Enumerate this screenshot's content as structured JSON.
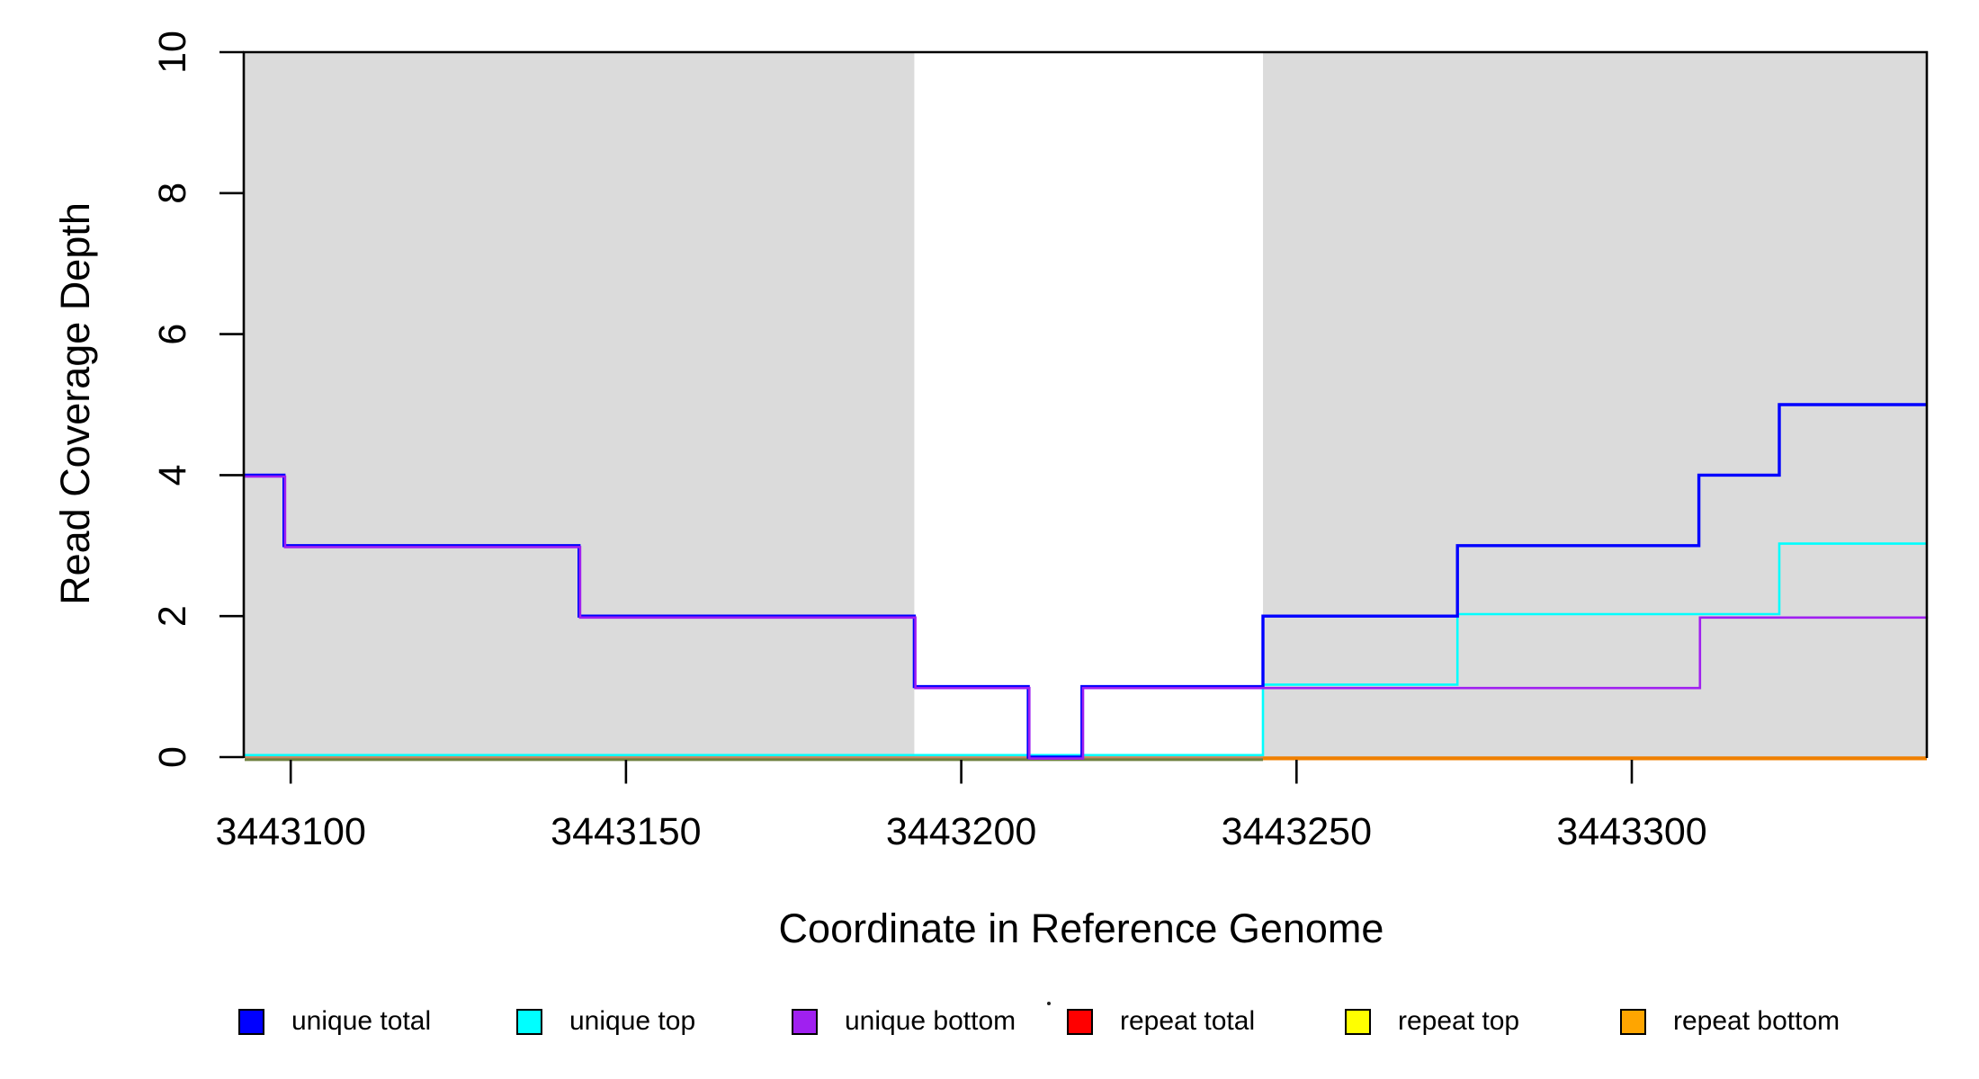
{
  "chart_data": {
    "type": "line",
    "subtype": "step-coverage-plot",
    "title": "",
    "xlabel": "Coordinate in Reference Genome",
    "ylabel": "Read Coverage Depth",
    "xlim": [
      3443093,
      3443344
    ],
    "ylim": [
      0,
      10
    ],
    "x_ticks": [
      "3443100",
      "3443150",
      "3443200",
      "3443250",
      "3443300"
    ],
    "x_tick_values": [
      3443100,
      3443150,
      3443200,
      3443250,
      3443300
    ],
    "y_ticks": [
      "0",
      "2",
      "4",
      "6",
      "8",
      "10"
    ],
    "y_tick_values": [
      0,
      2,
      4,
      6,
      8,
      10
    ],
    "grid": false,
    "shade_color": "#DBDBDB",
    "repeat_masked_regions": [
      {
        "start": 3443093,
        "end": 3443193
      },
      {
        "start": 3443245,
        "end": 3443344
      }
    ],
    "series": [
      {
        "name": "unique total",
        "color": "#0000FF",
        "start_value": 4,
        "steps": [
          [
            3443099,
            3
          ],
          [
            3443143,
            2
          ],
          [
            3443193,
            1
          ],
          [
            3443210,
            0
          ],
          [
            3443218,
            1
          ],
          [
            3443245,
            2
          ],
          [
            3443274,
            3
          ],
          [
            3443310,
            4
          ],
          [
            3443322,
            5
          ]
        ]
      },
      {
        "name": "unique top",
        "color": "#00FFFF",
        "start_value": 0,
        "steps": [
          [
            3443245,
            1
          ],
          [
            3443274,
            2
          ],
          [
            3443322,
            3
          ]
        ]
      },
      {
        "name": "unique bottom",
        "color": "#A020F0",
        "start_value": 4,
        "steps": [
          [
            3443099,
            3
          ],
          [
            3443143,
            2
          ],
          [
            3443193,
            1
          ],
          [
            3443210,
            0
          ],
          [
            3443218,
            1
          ],
          [
            3443310,
            2
          ]
        ]
      },
      {
        "name": "repeat total",
        "color": "#FF0000",
        "start_value": 0,
        "steps": []
      },
      {
        "name": "repeat top",
        "color": "#FFFF00",
        "start_value": 0,
        "steps": []
      },
      {
        "name": "repeat bottom",
        "color": "#FFA500",
        "start_value": 0,
        "steps": []
      }
    ],
    "legend": {
      "position": "bottom",
      "title_dot": ".",
      "items": [
        {
          "label": "unique total",
          "color": "#0000FF"
        },
        {
          "label": "unique top",
          "color": "#00FFFF"
        },
        {
          "label": "unique bottom",
          "color": "#A020F0"
        },
        {
          "label": "repeat total",
          "color": "#FF0000"
        },
        {
          "label": "repeat top",
          "color": "#FFFF00"
        },
        {
          "label": "repeat bottom",
          "color": "#FFA500"
        }
      ]
    }
  }
}
